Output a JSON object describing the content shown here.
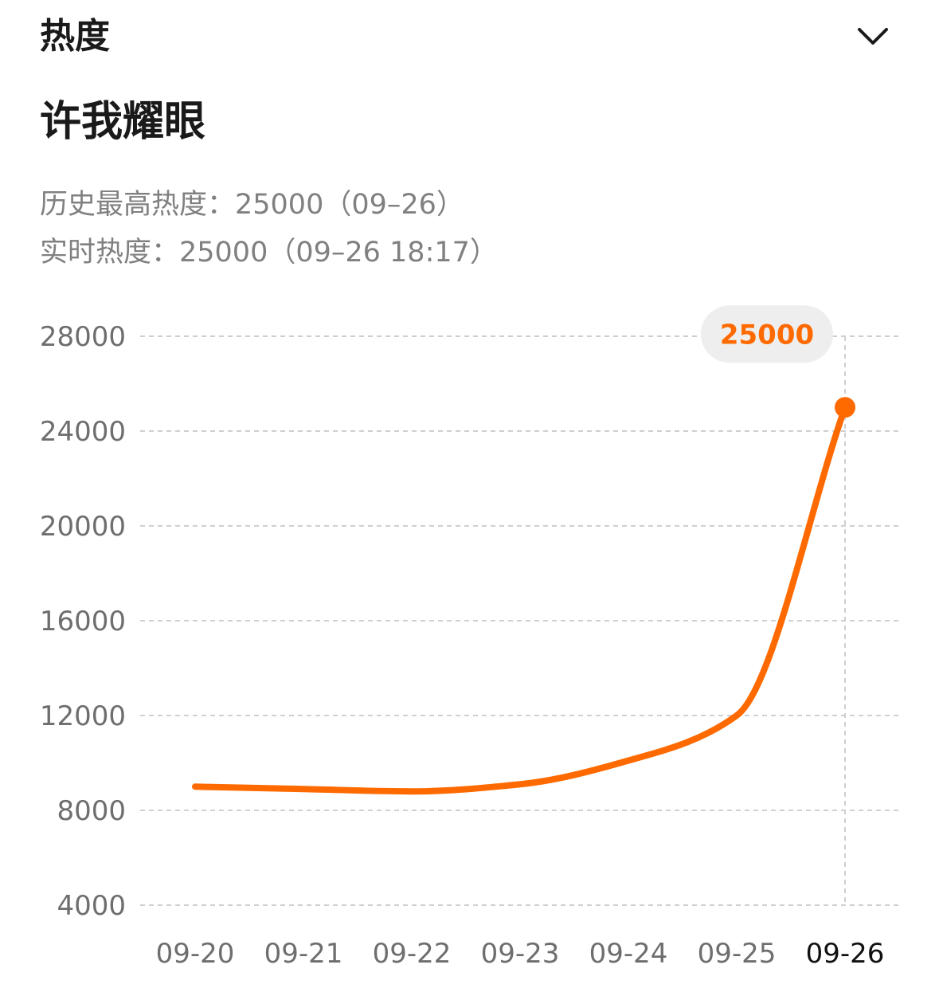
{
  "header": {
    "title": "热度"
  },
  "song": {
    "title": "许我耀眼"
  },
  "stats": {
    "peak_text": "历史最高热度：25000（09–26）",
    "live_text": "实时热度：25000（09–26 18:17）"
  },
  "colors": {
    "line": "#FF6A00",
    "peak_bubble_bg": "#EEEEEE",
    "grid": "#CFCFCF"
  },
  "chart_data": {
    "type": "line",
    "title": "",
    "xlabel": "",
    "ylabel": "",
    "ylim": [
      4000,
      28000
    ],
    "yticks": [
      "28000",
      "24000",
      "20000",
      "16000",
      "12000",
      "8000",
      "4000"
    ],
    "grid": "horizontal-dashed",
    "x": [
      "09-20",
      "09-21",
      "09-22",
      "09-23",
      "09-24",
      "09-25",
      "09-26"
    ],
    "selected_x": "09-26",
    "series": [
      {
        "name": "",
        "values": [
          9000,
          8900,
          8800,
          9100,
          10100,
          12000,
          25000
        ]
      }
    ],
    "annotation": {
      "x": "09-26",
      "value": 25000,
      "label": "25000"
    }
  }
}
